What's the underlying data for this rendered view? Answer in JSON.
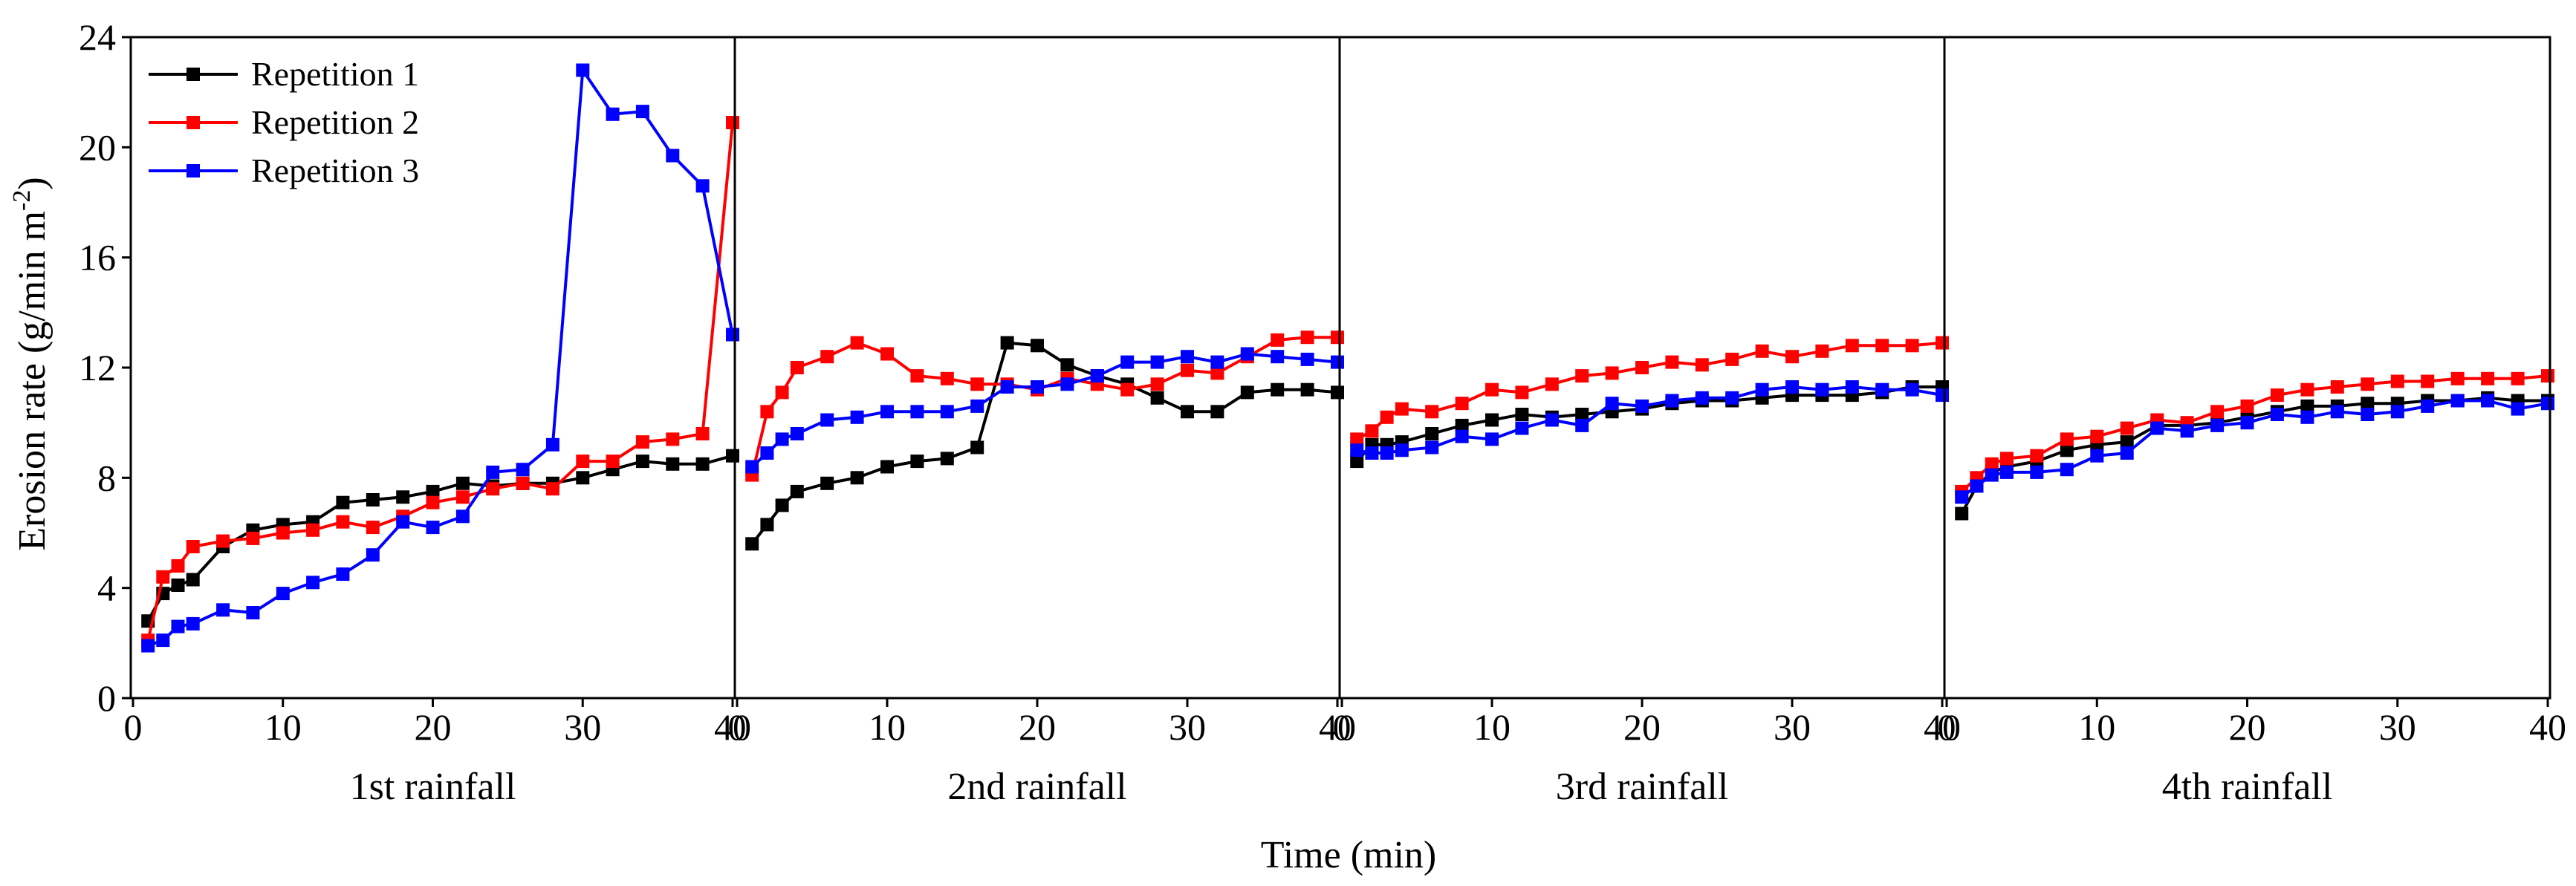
{
  "chart_data": {
    "type": "line",
    "ylabel": "Erosion rate (g/min m",
    "ylabel_sup": "-2",
    "ylabel_end": ")",
    "xlabel": "Time (min)",
    "ylim": [
      0,
      24
    ],
    "yticks": [
      0,
      4,
      8,
      12,
      16,
      20,
      24
    ],
    "xlim": [
      0,
      40
    ],
    "xticks": [
      0,
      10,
      20,
      30,
      40
    ],
    "legend": {
      "position": "top-left",
      "entries": [
        "Repetition 1",
        "Repetition 2",
        "Repetition 3"
      ]
    },
    "colors": {
      "Repetition 1": "#000000",
      "Repetition 2": "#ff0000",
      "Repetition 3": "#0000ff"
    },
    "panels": [
      {
        "label": "1st rainfall",
        "x": [
          1,
          2,
          3,
          4,
          6,
          8,
          10,
          12,
          14,
          16,
          18,
          20,
          22,
          24,
          26,
          28,
          30,
          32,
          34,
          36,
          38,
          40
        ],
        "series": [
          {
            "name": "Repetition 1",
            "values": [
              2.8,
              3.8,
              4.1,
              4.3,
              5.5,
              6.1,
              6.3,
              6.4,
              7.1,
              7.2,
              7.3,
              7.5,
              7.8,
              7.7,
              7.8,
              7.8,
              8.0,
              8.3,
              8.6,
              8.5,
              8.5,
              8.8
            ]
          },
          {
            "name": "Repetition 2",
            "values": [
              2.1,
              4.4,
              4.8,
              5.5,
              5.7,
              5.8,
              6.0,
              6.1,
              6.4,
              6.2,
              6.6,
              7.1,
              7.3,
              7.6,
              7.8,
              7.6,
              8.6,
              8.6,
              9.3,
              9.4,
              9.6,
              20.9
            ]
          },
          {
            "name": "Repetition 3",
            "values": [
              1.9,
              2.1,
              2.6,
              2.7,
              3.2,
              3.1,
              3.8,
              4.2,
              4.5,
              5.2,
              6.4,
              6.2,
              6.6,
              8.2,
              8.3,
              9.2,
              22.8,
              21.2,
              21.3,
              19.7,
              18.6,
              13.2
            ]
          }
        ]
      },
      {
        "label": "2nd rainfall",
        "x": [
          1,
          2,
          3,
          4,
          6,
          8,
          10,
          12,
          14,
          16,
          18,
          20,
          22,
          24,
          26,
          28,
          30,
          32,
          34,
          36,
          38,
          40
        ],
        "series": [
          {
            "name": "Repetition 1",
            "values": [
              5.6,
              6.3,
              7.0,
              7.5,
              7.8,
              8.0,
              8.4,
              8.6,
              8.7,
              9.1,
              12.9,
              12.8,
              12.1,
              11.7,
              11.4,
              10.9,
              10.4,
              10.4,
              11.1,
              11.2,
              11.2,
              11.1
            ]
          },
          {
            "name": "Repetition 2",
            "values": [
              8.1,
              10.4,
              11.1,
              12.0,
              12.4,
              12.9,
              12.5,
              11.7,
              11.6,
              11.4,
              11.4,
              11.2,
              11.6,
              11.4,
              11.2,
              11.4,
              11.9,
              11.8,
              12.4,
              13.0,
              13.1,
              13.1
            ]
          },
          {
            "name": "Repetition 3",
            "values": [
              8.4,
              8.9,
              9.4,
              9.6,
              10.1,
              10.2,
              10.4,
              10.4,
              10.4,
              10.6,
              11.3,
              11.3,
              11.4,
              11.7,
              12.2,
              12.2,
              12.4,
              12.2,
              12.5,
              12.4,
              12.3,
              12.2
            ]
          }
        ]
      },
      {
        "label": "3rd rainfall",
        "x": [
          1,
          2,
          3,
          4,
          6,
          8,
          10,
          12,
          14,
          16,
          18,
          20,
          22,
          24,
          26,
          28,
          30,
          32,
          34,
          36,
          38,
          40
        ],
        "series": [
          {
            "name": "Repetition 1",
            "values": [
              8.6,
              9.2,
              9.2,
              9.3,
              9.6,
              9.9,
              10.1,
              10.3,
              10.2,
              10.3,
              10.4,
              10.5,
              10.7,
              10.8,
              10.8,
              10.9,
              11.0,
              11.0,
              11.0,
              11.1,
              11.3,
              11.3
            ]
          },
          {
            "name": "Repetition 2",
            "values": [
              9.4,
              9.7,
              10.2,
              10.5,
              10.4,
              10.7,
              11.2,
              11.1,
              11.4,
              11.7,
              11.8,
              12.0,
              12.2,
              12.1,
              12.3,
              12.6,
              12.4,
              12.6,
              12.8,
              12.8,
              12.8,
              12.9
            ]
          },
          {
            "name": "Repetition 3",
            "values": [
              9.0,
              8.9,
              8.9,
              9.0,
              9.1,
              9.5,
              9.4,
              9.8,
              10.1,
              9.9,
              10.7,
              10.6,
              10.8,
              10.9,
              10.9,
              11.2,
              11.3,
              11.2,
              11.3,
              11.2,
              11.2,
              11.0
            ]
          }
        ]
      },
      {
        "label": "4th rainfall",
        "x": [
          1,
          2,
          3,
          4,
          6,
          8,
          10,
          12,
          14,
          16,
          18,
          20,
          22,
          24,
          26,
          28,
          30,
          32,
          34,
          36,
          38,
          40
        ],
        "series": [
          {
            "name": "Repetition 1",
            "values": [
              6.7,
              7.7,
              8.2,
              8.4,
              8.6,
              9.0,
              9.2,
              9.3,
              9.9,
              9.9,
              10.0,
              10.2,
              10.4,
              10.6,
              10.6,
              10.7,
              10.7,
              10.8,
              10.8,
              10.9,
              10.8,
              10.8
            ]
          },
          {
            "name": "Repetition 2",
            "values": [
              7.5,
              8.0,
              8.5,
              8.7,
              8.8,
              9.4,
              9.5,
              9.8,
              10.1,
              10.0,
              10.4,
              10.6,
              11.0,
              11.2,
              11.3,
              11.4,
              11.5,
              11.5,
              11.6,
              11.6,
              11.6,
              11.7
            ]
          },
          {
            "name": "Repetition 3",
            "values": [
              7.3,
              7.7,
              8.1,
              8.2,
              8.2,
              8.3,
              8.8,
              8.9,
              9.8,
              9.7,
              9.9,
              10.0,
              10.3,
              10.2,
              10.4,
              10.3,
              10.4,
              10.6,
              10.8,
              10.8,
              10.5,
              10.7
            ]
          }
        ]
      }
    ]
  }
}
